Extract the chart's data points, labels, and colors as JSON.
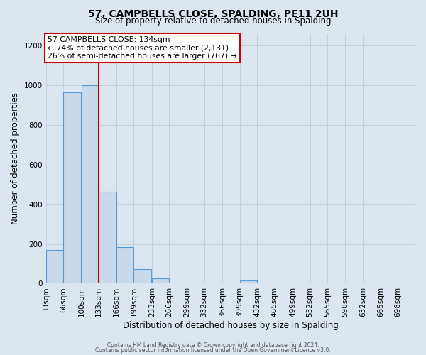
{
  "title": "57, CAMPBELLS CLOSE, SPALDING, PE11 2UH",
  "subtitle": "Size of property relative to detached houses in Spalding",
  "xlabel": "Distribution of detached houses by size in Spalding",
  "ylabel": "Number of detached properties",
  "bin_edges": [
    33,
    66,
    100,
    133,
    166,
    199,
    233,
    266,
    299,
    332,
    366,
    399,
    432,
    465,
    499,
    532,
    565,
    598,
    632,
    665,
    698
  ],
  "bin_labels": [
    "33sqm",
    "66sqm",
    "100sqm",
    "133sqm",
    "166sqm",
    "199sqm",
    "233sqm",
    "266sqm",
    "299sqm",
    "332sqm",
    "366sqm",
    "399sqm",
    "432sqm",
    "465sqm",
    "499sqm",
    "532sqm",
    "565sqm",
    "598sqm",
    "632sqm",
    "665sqm",
    "698sqm"
  ],
  "counts": [
    170,
    965,
    1000,
    465,
    185,
    75,
    25,
    0,
    0,
    0,
    0,
    15,
    0,
    0,
    0,
    0,
    0,
    0,
    0,
    0
  ],
  "bar_facecolor": "#c9d9ea",
  "bar_edgecolor": "#5b9bd5",
  "vline_x": 133,
  "vline_color": "#cc0000",
  "annotation_line1": "57 CAMPBELLS CLOSE: 134sqm",
  "annotation_line2": "← 74% of detached houses are smaller (2,131)",
  "annotation_line3": "26% of semi-detached houses are larger (767) →",
  "annotation_box_edgecolor": "#cc0000",
  "annotation_box_facecolor": "#ffffff",
  "ylim": [
    0,
    1260
  ],
  "yticks": [
    0,
    200,
    400,
    600,
    800,
    1000,
    1200
  ],
  "xlim_left": 33,
  "xlim_right": 731,
  "grid_color": "#c5d0de",
  "bg_color": "#dce6f0",
  "footer1": "Contains HM Land Registry data © Crown copyright and database right 2024.",
  "footer2": "Contains public sector information licensed under the Open Government Licence v3.0."
}
